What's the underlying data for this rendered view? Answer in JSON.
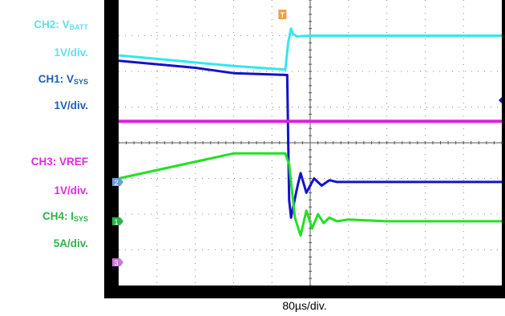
{
  "labels": {
    "ch2": {
      "name": "CH2: V",
      "sub": "BATT",
      "scale": "1V/div.",
      "color": "#5fe0ee"
    },
    "ch1": {
      "name": "CH1: V",
      "sub": "SYS",
      "scale": "1V/div.",
      "color": "#1f5fb5"
    },
    "ch3": {
      "name": "CH3: VREF",
      "scale": "1V/div.",
      "color": "#e02adf"
    },
    "ch4": {
      "name": "CH4: I",
      "sub": "SYS",
      "scale": "5A/div.",
      "color": "#2db34a"
    }
  },
  "timebase": "80µs/div.",
  "chart_data": {
    "type": "line",
    "xlabel": "80µs/div.",
    "grid": true,
    "divisions": {
      "x": 10,
      "y": 8
    },
    "x_range_div": [
      0,
      10
    ],
    "y_range_div": [
      -4,
      4
    ],
    "trigger_marker": "T",
    "series": [
      {
        "name": "CH2: VBATT",
        "scale": "1V/div.",
        "color": "#33e6f0",
        "x": [
          0,
          2,
          4,
          6,
          8.7,
          8.85,
          9.0,
          9.1,
          9.3,
          10,
          14,
          20
        ],
        "y": [
          2.45,
          2.35,
          2.25,
          2.15,
          2.05,
          2.8,
          3.2,
          3.05,
          2.98,
          3.0,
          3.0,
          3.0
        ]
      },
      {
        "name": "CH1: VSYS",
        "scale": "1V/div.",
        "color": "#1313cc",
        "x": [
          0,
          2,
          4,
          6,
          8.8,
          8.9,
          9.0,
          9.3,
          9.5,
          9.8,
          10.2,
          10.6,
          11.0,
          11.4,
          12,
          14,
          20
        ],
        "y": [
          2.3,
          2.2,
          2.1,
          1.95,
          1.9,
          -1.6,
          -2.1,
          -1.3,
          -0.85,
          -1.4,
          -1.0,
          -1.2,
          -1.05,
          -1.1,
          -1.1,
          -1.1,
          -1.1
        ]
      },
      {
        "name": "CH3: VREF",
        "scale": "1V/div.",
        "color": "#e020e0",
        "x": [
          0,
          20
        ],
        "y": [
          0.6,
          0.6
        ]
      },
      {
        "name": "CH4: ISYS",
        "scale": "5A/div.",
        "color": "#22e022",
        "x": [
          0,
          6,
          8.7,
          8.9,
          9.2,
          9.5,
          9.8,
          10.1,
          10.4,
          10.7,
          11.0,
          11.4,
          12,
          14,
          20
        ],
        "y": [
          -1.0,
          -0.3,
          -0.3,
          -0.6,
          -2.1,
          -2.6,
          -1.9,
          -2.4,
          -2.0,
          -2.25,
          -2.1,
          -2.2,
          -2.15,
          -2.2,
          -2.2
        ]
      }
    ],
    "channel_markers": [
      {
        "label": "2",
        "y": -1.1,
        "color": "#6aa0d8"
      },
      {
        "label": "1",
        "y": -2.2,
        "color": "#2db34a"
      },
      {
        "label": "3",
        "y": -3.35,
        "color": "#c978d8"
      }
    ]
  }
}
